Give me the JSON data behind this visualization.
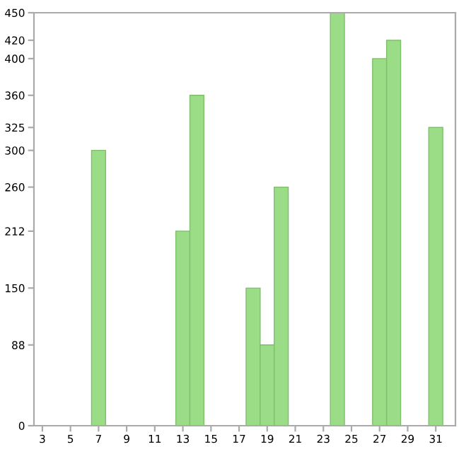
{
  "chart_data": {
    "type": "bar",
    "x": [
      7,
      13,
      14,
      18,
      19,
      20,
      24,
      27,
      28,
      31
    ],
    "series": [
      {
        "color": "#9bdc87",
        "values": [
          300,
          212,
          360,
          150,
          88,
          260,
          450,
          400,
          420,
          325
        ]
      }
    ],
    "xlim": [
      2.4,
      32.4
    ],
    "xticks": [
      3,
      5,
      7,
      9,
      11,
      13,
      15,
      17,
      19,
      21,
      23,
      25,
      27,
      29,
      31
    ],
    "ylim": [
      0,
      450
    ],
    "yticks": [
      0,
      88,
      150,
      212,
      260,
      300,
      325,
      360,
      400,
      420,
      450
    ],
    "grid": false,
    "legend": false
  }
}
